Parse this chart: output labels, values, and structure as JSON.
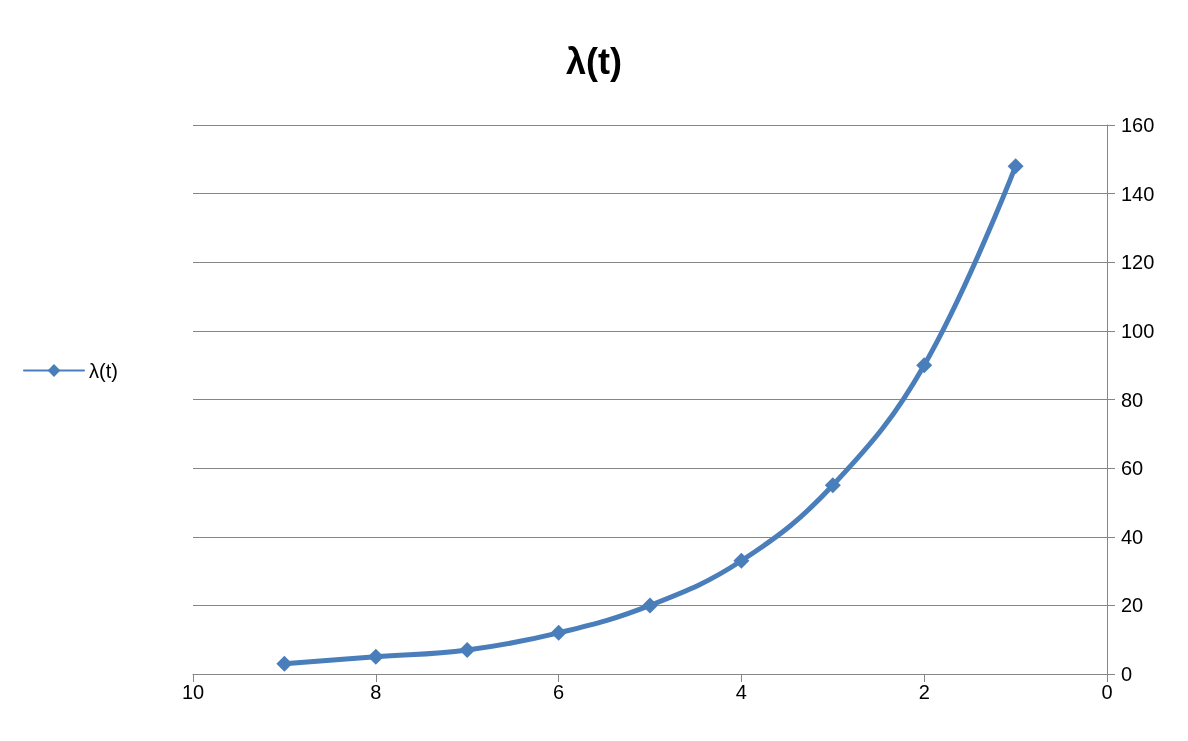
{
  "chart_data": {
    "type": "line",
    "title": "λ(t)",
    "x": [
      9,
      8,
      7,
      6,
      5,
      4,
      3,
      2,
      1
    ],
    "series": [
      {
        "name": "λ(t)",
        "color": "#4a7ebb",
        "values": [
          3,
          5,
          7,
          12,
          20,
          33,
          55,
          90,
          148
        ]
      }
    ],
    "xlim": [
      10,
      0
    ],
    "xticks": [
      0,
      2,
      4,
      6,
      8,
      10
    ],
    "ylim": [
      0,
      160
    ],
    "yticks": [
      0,
      20,
      40,
      60,
      80,
      100,
      120,
      140,
      160
    ],
    "grid": "y",
    "legend": "left",
    "marker": "diamond",
    "line_style": "solid"
  }
}
